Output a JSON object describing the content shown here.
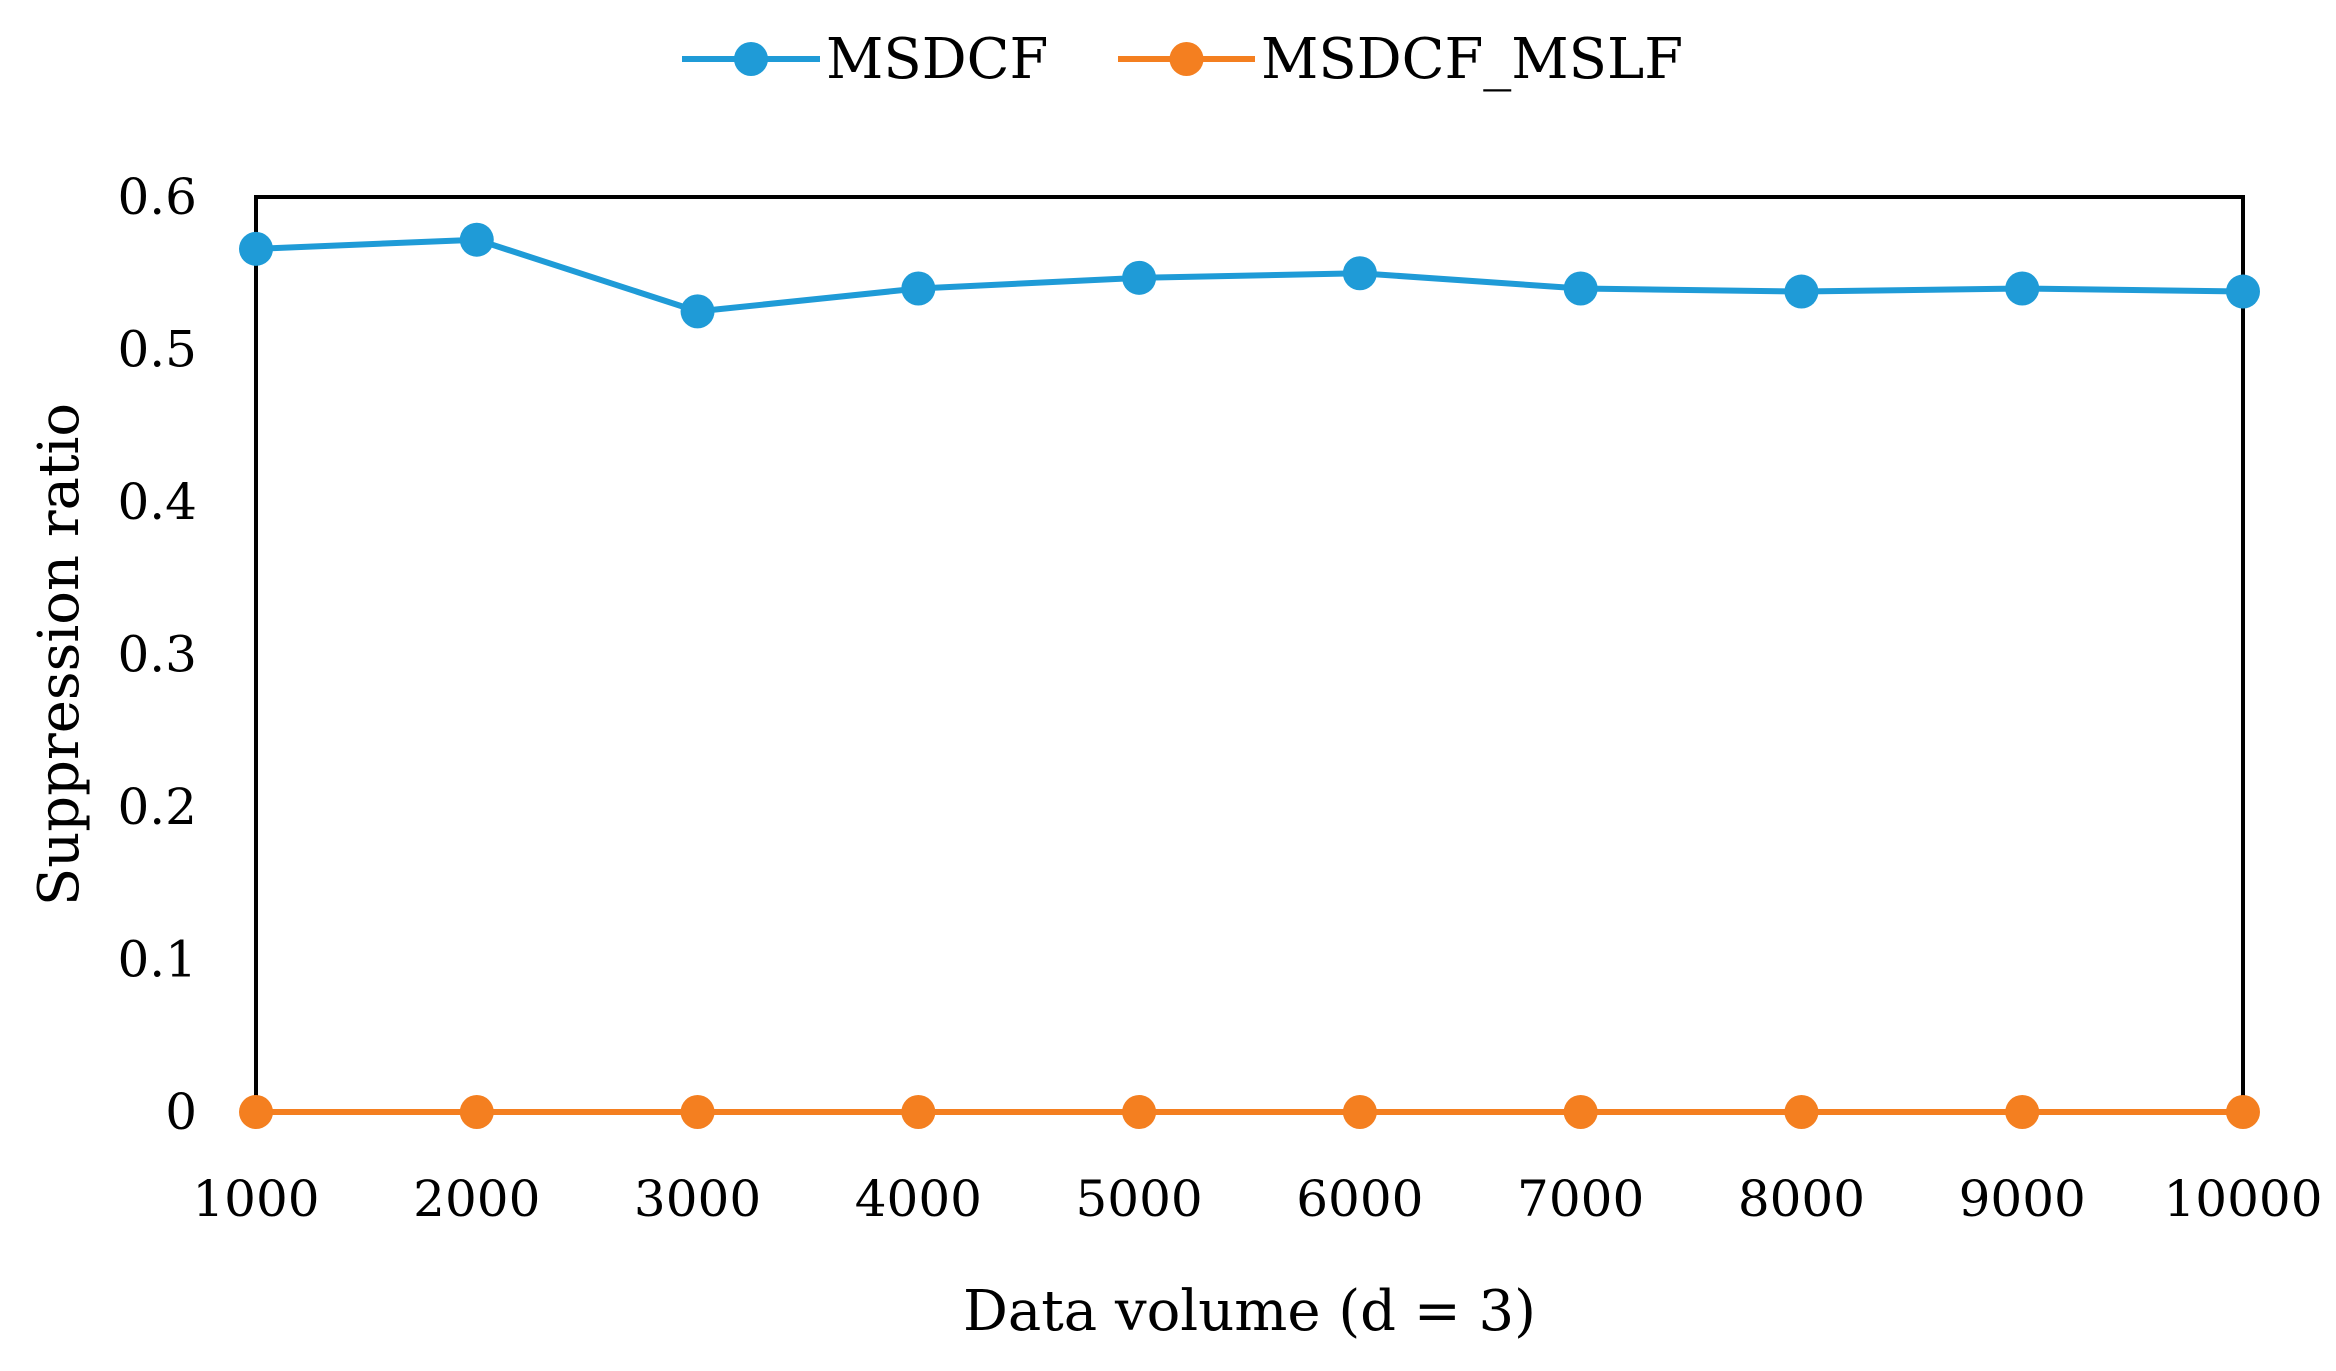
{
  "chart_data": {
    "type": "line",
    "title": "",
    "xlabel": "Data volume (d = 3)",
    "ylabel": "Suppression ratio",
    "categories": [
      "1000",
      "2000",
      "3000",
      "4000",
      "5000",
      "6000",
      "7000",
      "8000",
      "9000",
      "10000"
    ],
    "yticks": [
      "0",
      "0.1",
      "0.2",
      "0.3",
      "0.4",
      "0.5",
      "0.6"
    ],
    "ylim": [
      0,
      0.6
    ],
    "grid": false,
    "legend_position": "top-center",
    "series": [
      {
        "name": "MSDCF",
        "color": "#1f9bd7",
        "values": [
          0.566,
          0.572,
          0.525,
          0.54,
          0.547,
          0.55,
          0.54,
          0.538,
          0.54,
          0.538
        ]
      },
      {
        "name": "MSDCF_MSLF",
        "color": "#f47f20",
        "values": [
          0,
          0,
          0,
          0,
          0,
          0,
          0,
          0,
          0,
          0
        ]
      }
    ]
  }
}
